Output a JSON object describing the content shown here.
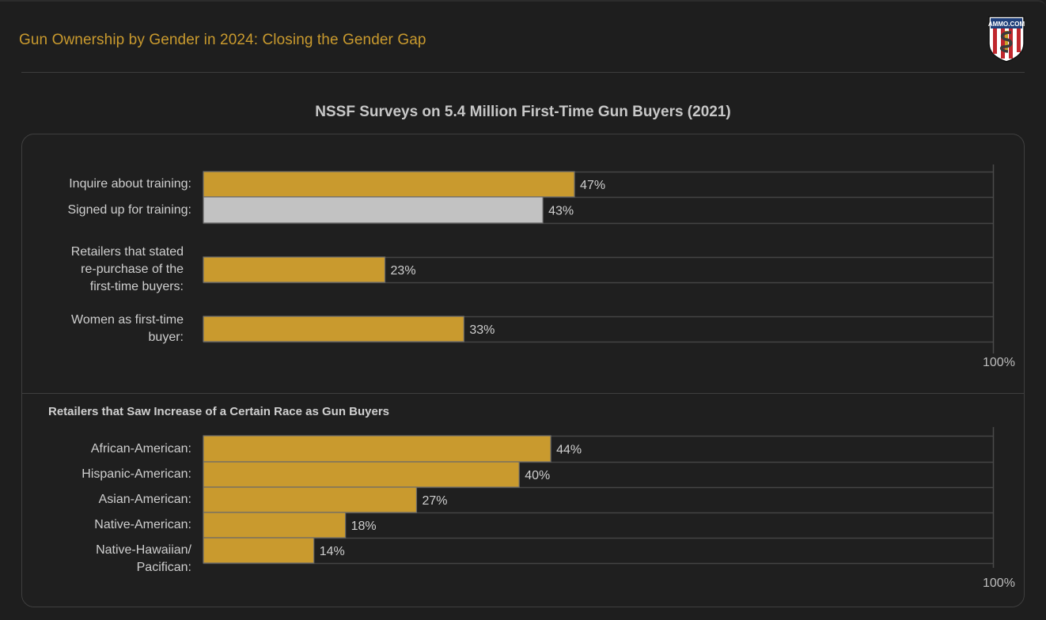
{
  "header": {
    "title": "Gun Ownership by Gender in 2024: Closing the Gender Gap",
    "logo_text": "AMMO.COM"
  },
  "colors": {
    "accent": "#c99a2e",
    "bar_primary": "#c99a2e",
    "bar_secondary": "#c2c2c2",
    "background": "#1e1e1e",
    "grid": "#444444"
  },
  "chart_data": [
    {
      "type": "bar",
      "orientation": "horizontal",
      "title": "NSSF Surveys on 5.4 Million First-Time Gun Buyers (2021)",
      "categories": [
        "Inquire about training:",
        "Signed up for training:",
        "Retailers that stated re-purchase of the first-time buyers:",
        "Women as first-time buyer:"
      ],
      "label_lines": [
        [
          "Inquire about training:"
        ],
        [
          "Signed up for training:"
        ],
        [
          "Retailers that stated",
          "re-purchase of the",
          "first-time buyers:"
        ],
        [
          "Women as first-time",
          "buyer:"
        ]
      ],
      "values": [
        47,
        43,
        23,
        33
      ],
      "value_labels": [
        "47%",
        "43%",
        "23%",
        "33%"
      ],
      "bar_colors": [
        "#c99a2e",
        "#c2c2c2",
        "#c99a2e",
        "#c99a2e"
      ],
      "xlim": [
        0,
        100
      ],
      "axis_max_label": "100%",
      "unit": "%"
    },
    {
      "type": "bar",
      "orientation": "horizontal",
      "title": "Retailers that Saw Increase of a Certain Race as Gun Buyers",
      "categories": [
        "African-American:",
        "Hispanic-American:",
        "Asian-American:",
        "Native-American:",
        "Native-Hawaiian/ Pacifican:"
      ],
      "label_lines": [
        [
          "African-American:"
        ],
        [
          "Hispanic-American:"
        ],
        [
          "Asian-American:"
        ],
        [
          "Native-American:"
        ],
        [
          "Native-Hawaiian/",
          "Pacifican:"
        ]
      ],
      "values": [
        44,
        40,
        27,
        18,
        14
      ],
      "value_labels": [
        "44%",
        "40%",
        "27%",
        "18%",
        "14%"
      ],
      "bar_colors": [
        "#c99a2e",
        "#c99a2e",
        "#c99a2e",
        "#c99a2e",
        "#c99a2e"
      ],
      "xlim": [
        0,
        100
      ],
      "axis_max_label": "100%",
      "unit": "%"
    }
  ]
}
